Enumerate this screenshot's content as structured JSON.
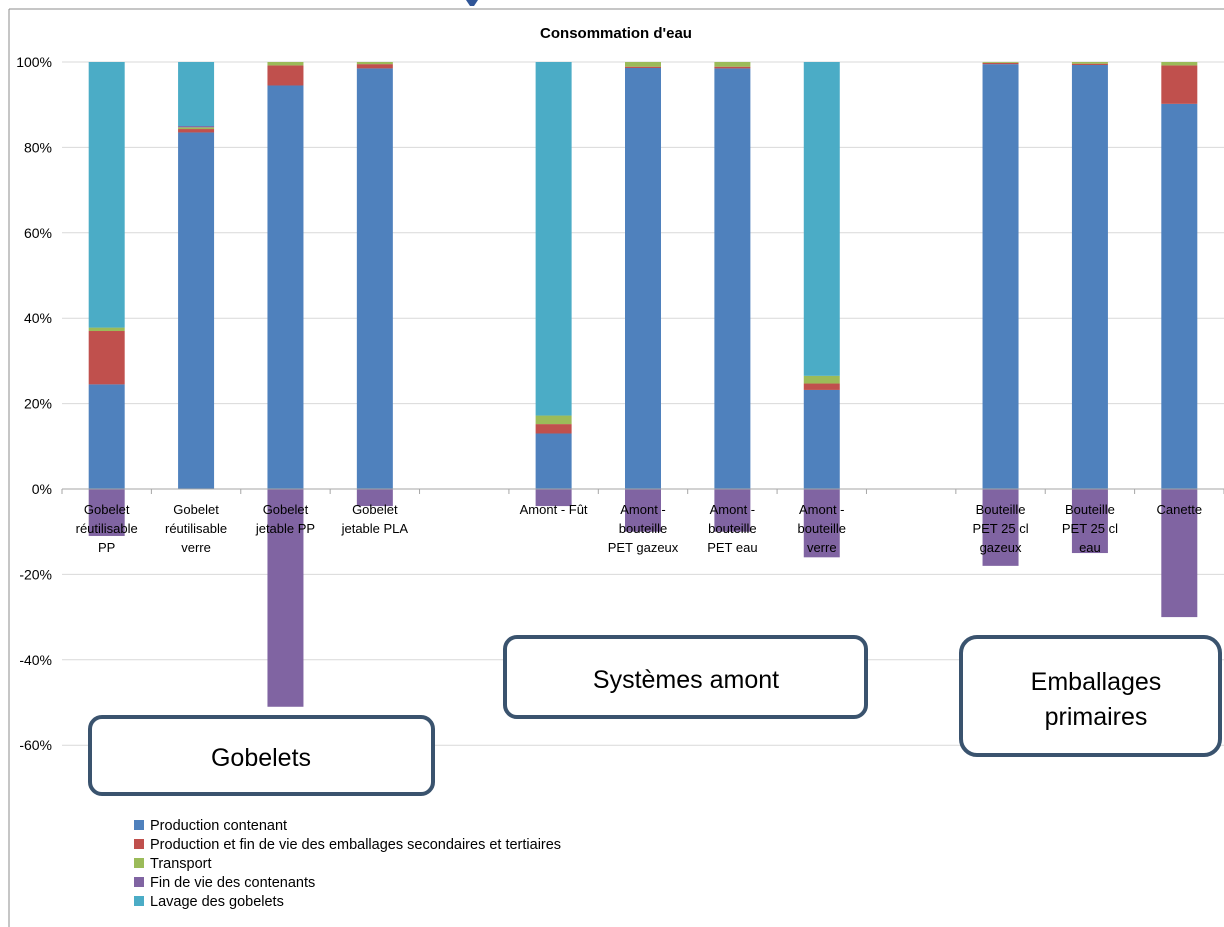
{
  "chart_data": {
    "type": "bar",
    "stacked": true,
    "title": "Consommation d'eau",
    "ylim": [
      -0.7,
      1.0
    ],
    "yticks": [
      {
        "value": 1.0,
        "label": "100%"
      },
      {
        "value": 0.8,
        "label": "80%"
      },
      {
        "value": 0.6,
        "label": "60%"
      },
      {
        "value": 0.4,
        "label": "40%"
      },
      {
        "value": 0.2,
        "label": "20%"
      },
      {
        "value": 0.0,
        "label": "0%"
      },
      {
        "value": -0.2,
        "label": "-20%"
      },
      {
        "value": -0.4,
        "label": "-40%"
      },
      {
        "value": -0.6,
        "label": "-60%"
      }
    ],
    "grid": true,
    "legend_position": "bottom-left",
    "categories": [
      [
        "Gobelet",
        "réutilisable",
        "PP"
      ],
      [
        "Gobelet",
        "réutilisable",
        "verre"
      ],
      [
        "Gobelet",
        "jetable PP"
      ],
      [
        "Gobelet",
        "jetable PLA"
      ],
      [
        ""
      ],
      [
        "Amont - Fût"
      ],
      [
        "Amont -",
        "bouteille",
        "PET gazeux"
      ],
      [
        "Amont -",
        "bouteille",
        "PET eau"
      ],
      [
        "Amont -",
        "bouteille",
        "verre"
      ],
      [
        ""
      ],
      [
        "Bouteille",
        "PET 25 cl",
        "gazeux"
      ],
      [
        "Bouteille",
        "PET 25 cl",
        "eau"
      ],
      [
        "Canette"
      ]
    ],
    "series": [
      {
        "name": "Production contenant",
        "color": "#4f81bd",
        "values": [
          0.245,
          0.835,
          0.945,
          0.985,
          null,
          0.13,
          0.986,
          0.985,
          0.232,
          null,
          0.995,
          0.993,
          0.902
        ]
      },
      {
        "name": "Production et fin de vie des emballages secondaires et tertiaires",
        "color": "#c0504d",
        "values": [
          0.125,
          0.008,
          0.047,
          0.01,
          null,
          0.022,
          0.003,
          0.004,
          0.015,
          null,
          0.003,
          0.003,
          0.09
        ]
      },
      {
        "name": "Transport",
        "color": "#9bbb59",
        "values": [
          0.008,
          0.004,
          0.008,
          0.005,
          null,
          0.02,
          0.011,
          0.011,
          0.018,
          null,
          0.002,
          0.004,
          0.008
        ]
      },
      {
        "name": "Fin de vie des contenants",
        "color": "#8064a2",
        "values": [
          -0.11,
          0.003,
          -0.51,
          -0.04,
          null,
          -0.04,
          -0.1,
          -0.1,
          -0.16,
          null,
          -0.18,
          -0.15,
          -0.3
        ]
      },
      {
        "name": "Lavage des gobelets",
        "color": "#4bacc6",
        "values": [
          0.622,
          0.15,
          0,
          0,
          null,
          0.828,
          0,
          0,
          0.735,
          null,
          0,
          0,
          0
        ]
      }
    ]
  },
  "boxes": {
    "gobelets": "Gobelets",
    "systemes_amont": "Systèmes amont",
    "emballages_line1": "Emballages",
    "emballages_line2": "primaires"
  }
}
